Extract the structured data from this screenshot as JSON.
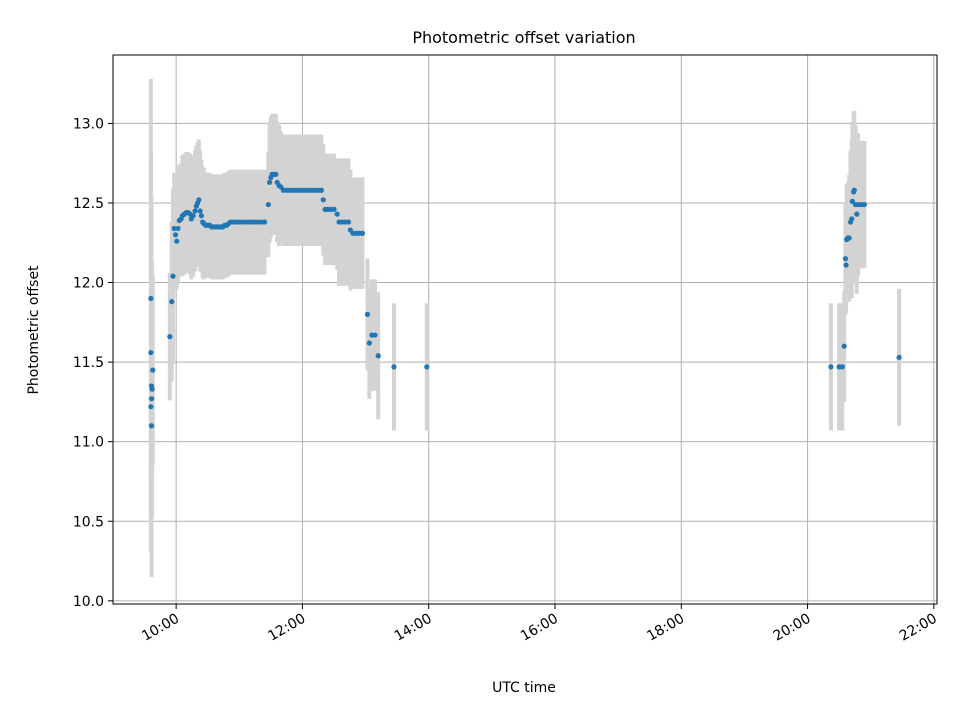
{
  "chart_data": {
    "type": "scatter",
    "title": "Photometric offset variation",
    "xlabel": "UTC time",
    "ylabel": "Photometric offset",
    "x_unit": "hours UTC",
    "xlim": [
      9.0,
      22.05
    ],
    "ylim": [
      9.98,
      13.43
    ],
    "grid": true,
    "x_ticks": [
      {
        "value": 10,
        "label": "10:00"
      },
      {
        "value": 12,
        "label": "12:00"
      },
      {
        "value": 14,
        "label": "14:00"
      },
      {
        "value": 16,
        "label": "16:00"
      },
      {
        "value": 18,
        "label": "18:00"
      },
      {
        "value": 20,
        "label": "20:00"
      },
      {
        "value": 22,
        "label": "22:00"
      }
    ],
    "y_ticks": [
      {
        "value": 10.0,
        "label": "10.0"
      },
      {
        "value": 10.5,
        "label": "10.5"
      },
      {
        "value": 11.0,
        "label": "11.0"
      },
      {
        "value": 11.5,
        "label": "11.5"
      },
      {
        "value": 12.0,
        "label": "12.0"
      },
      {
        "value": 12.5,
        "label": "12.5"
      },
      {
        "value": 13.0,
        "label": "13.0"
      }
    ],
    "colors": {
      "points": "#1f77b4",
      "errorbars": "#d3d3d3",
      "grid": "#b0b0b0"
    },
    "series": [
      {
        "points": [
          [
            9.6,
            11.9,
            1.38
          ],
          [
            9.6,
            11.56,
            1.25
          ],
          [
            9.61,
            11.35,
            1.2
          ],
          [
            9.62,
            11.33,
            0.8
          ],
          [
            9.61,
            11.27,
            0.6
          ],
          [
            9.6,
            11.22,
            0.5
          ],
          [
            9.61,
            11.1,
            0.4
          ],
          [
            9.63,
            11.45,
            0.6
          ],
          [
            9.9,
            11.66,
            0.4
          ],
          [
            9.93,
            11.88,
            0.5
          ],
          [
            9.95,
            12.04,
            0.55
          ],
          [
            9.97,
            12.34,
            0.35
          ],
          [
            9.99,
            12.3,
            0.35
          ],
          [
            10.01,
            12.26,
            0.3
          ],
          [
            10.03,
            12.34,
            0.35
          ],
          [
            10.05,
            12.39,
            0.35
          ],
          [
            10.08,
            12.4,
            0.35
          ],
          [
            10.1,
            12.42,
            0.38
          ],
          [
            10.13,
            12.43,
            0.38
          ],
          [
            10.16,
            12.44,
            0.38
          ],
          [
            10.19,
            12.44,
            0.38
          ],
          [
            10.22,
            12.43,
            0.38
          ],
          [
            10.24,
            12.4,
            0.38
          ],
          [
            10.27,
            12.42,
            0.38
          ],
          [
            10.3,
            12.45,
            0.38
          ],
          [
            10.32,
            12.48,
            0.38
          ],
          [
            10.34,
            12.5,
            0.38
          ],
          [
            10.36,
            12.52,
            0.38
          ],
          [
            10.38,
            12.45,
            0.38
          ],
          [
            10.4,
            12.42,
            0.35
          ],
          [
            10.42,
            12.38,
            0.35
          ],
          [
            10.44,
            12.37,
            0.35
          ],
          [
            10.47,
            12.36,
            0.33
          ],
          [
            10.5,
            12.36,
            0.33
          ],
          [
            10.53,
            12.36,
            0.33
          ],
          [
            10.56,
            12.35,
            0.33
          ],
          [
            10.59,
            12.35,
            0.33
          ],
          [
            10.62,
            12.35,
            0.33
          ],
          [
            10.65,
            12.35,
            0.33
          ],
          [
            10.68,
            12.35,
            0.33
          ],
          [
            10.71,
            12.35,
            0.33
          ],
          [
            10.74,
            12.35,
            0.33
          ],
          [
            10.77,
            12.36,
            0.33
          ],
          [
            10.8,
            12.36,
            0.33
          ],
          [
            10.83,
            12.37,
            0.33
          ],
          [
            10.86,
            12.38,
            0.33
          ],
          [
            10.9,
            12.38,
            0.33
          ],
          [
            10.95,
            12.38,
            0.33
          ],
          [
            11.0,
            12.38,
            0.33
          ],
          [
            11.05,
            12.38,
            0.33
          ],
          [
            11.1,
            12.38,
            0.33
          ],
          [
            11.15,
            12.38,
            0.33
          ],
          [
            11.2,
            12.38,
            0.33
          ],
          [
            11.25,
            12.38,
            0.33
          ],
          [
            11.3,
            12.38,
            0.33
          ],
          [
            11.35,
            12.38,
            0.33
          ],
          [
            11.4,
            12.38,
            0.33
          ],
          [
            11.46,
            12.49,
            0.33
          ],
          [
            11.48,
            12.63,
            0.38
          ],
          [
            11.5,
            12.66,
            0.38
          ],
          [
            11.52,
            12.68,
            0.38
          ],
          [
            11.55,
            12.68,
            0.38
          ],
          [
            11.58,
            12.68,
            0.38
          ],
          [
            11.6,
            12.63,
            0.38
          ],
          [
            11.63,
            12.61,
            0.38
          ],
          [
            11.66,
            12.6,
            0.35
          ],
          [
            11.7,
            12.58,
            0.35
          ],
          [
            11.75,
            12.58,
            0.35
          ],
          [
            11.8,
            12.58,
            0.35
          ],
          [
            11.85,
            12.58,
            0.35
          ],
          [
            11.9,
            12.58,
            0.35
          ],
          [
            11.95,
            12.58,
            0.35
          ],
          [
            12.0,
            12.58,
            0.35
          ],
          [
            12.05,
            12.58,
            0.35
          ],
          [
            12.1,
            12.58,
            0.35
          ],
          [
            12.15,
            12.58,
            0.35
          ],
          [
            12.2,
            12.58,
            0.35
          ],
          [
            12.25,
            12.58,
            0.35
          ],
          [
            12.3,
            12.58,
            0.35
          ],
          [
            12.33,
            12.52,
            0.35
          ],
          [
            12.36,
            12.46,
            0.35
          ],
          [
            12.4,
            12.46,
            0.35
          ],
          [
            12.45,
            12.46,
            0.35
          ],
          [
            12.5,
            12.46,
            0.35
          ],
          [
            12.55,
            12.43,
            0.35
          ],
          [
            12.58,
            12.38,
            0.4
          ],
          [
            12.63,
            12.38,
            0.4
          ],
          [
            12.68,
            12.38,
            0.4
          ],
          [
            12.73,
            12.38,
            0.4
          ],
          [
            12.76,
            12.33,
            0.38
          ],
          [
            12.8,
            12.31,
            0.35
          ],
          [
            12.85,
            12.31,
            0.35
          ],
          [
            12.9,
            12.31,
            0.35
          ],
          [
            12.95,
            12.31,
            0.35
          ],
          [
            13.03,
            11.8,
            0.35
          ],
          [
            13.06,
            11.62,
            0.35
          ],
          [
            13.1,
            11.67,
            0.35
          ],
          [
            13.15,
            11.67,
            0.35
          ],
          [
            13.2,
            11.54,
            0.4
          ],
          [
            13.45,
            11.47,
            0.4
          ],
          [
            13.97,
            11.47,
            0.4
          ],
          [
            20.37,
            11.47,
            0.4
          ],
          [
            20.5,
            11.47,
            0.4
          ],
          [
            20.55,
            11.47,
            0.4
          ],
          [
            20.58,
            11.6,
            0.35
          ],
          [
            20.6,
            12.15,
            0.35
          ],
          [
            20.61,
            12.11,
            0.3
          ],
          [
            20.62,
            12.27,
            0.35
          ],
          [
            20.64,
            12.28,
            0.35
          ],
          [
            20.66,
            12.28,
            0.4
          ],
          [
            20.68,
            12.38,
            0.45
          ],
          [
            20.7,
            12.4,
            0.5
          ],
          [
            20.71,
            12.51,
            0.5
          ],
          [
            20.73,
            12.57,
            0.5
          ],
          [
            20.74,
            12.58,
            0.5
          ],
          [
            20.76,
            12.49,
            0.5
          ],
          [
            20.78,
            12.43,
            0.5
          ],
          [
            20.8,
            12.49,
            0.45
          ],
          [
            20.85,
            12.49,
            0.4
          ],
          [
            20.9,
            12.49,
            0.4
          ],
          [
            21.45,
            11.53,
            0.43
          ]
        ]
      }
    ]
  }
}
